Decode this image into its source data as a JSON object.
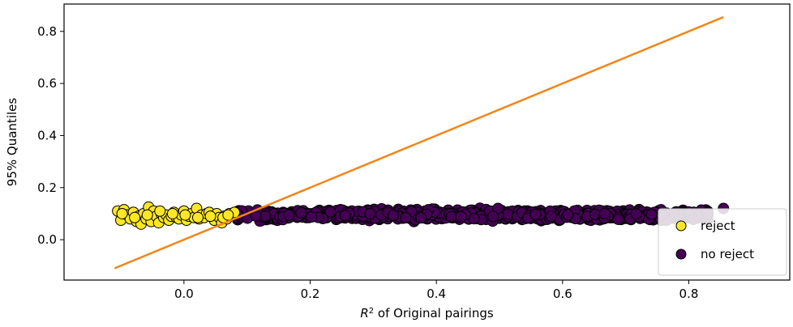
{
  "chart_data": {
    "type": "scatter",
    "title": "",
    "xlabel_base": "R",
    "xlabel_sup": "2",
    "xlabel_rest": " of Original pairings",
    "ylabel": "95% Quantiles",
    "xlim": [
      -0.19,
      0.96
    ],
    "ylim": [
      -0.155,
      0.905
    ],
    "x_ticks": [
      {
        "value": 0.0,
        "label": "0.0"
      },
      {
        "value": 0.2,
        "label": "0.2"
      },
      {
        "value": 0.4,
        "label": "0.4"
      },
      {
        "value": 0.6,
        "label": "0.6"
      },
      {
        "value": 0.8,
        "label": "0.8"
      }
    ],
    "y_ticks": [
      {
        "value": 0.0,
        "label": "0.0"
      },
      {
        "value": 0.2,
        "label": "0.2"
      },
      {
        "value": 0.4,
        "label": "0.4"
      },
      {
        "value": 0.6,
        "label": "0.6"
      },
      {
        "value": 0.8,
        "label": "0.8"
      }
    ],
    "legend_position": "lower-right",
    "line": {
      "x": [
        -0.11,
        0.855
      ],
      "y": [
        -0.11,
        0.855
      ],
      "color": "#f28518"
    },
    "series": [
      {
        "name": "reject",
        "color": "#fde725",
        "x": [
          -0.105,
          -0.1,
          -0.095,
          -0.09,
          -0.085,
          -0.08,
          -0.075,
          -0.072,
          -0.068,
          -0.064,
          -0.06,
          -0.056,
          -0.052,
          -0.048,
          -0.044,
          -0.04,
          -0.036,
          -0.032,
          -0.028,
          -0.024,
          -0.02,
          -0.016,
          -0.012,
          -0.008,
          -0.004,
          0.0,
          0.004,
          0.008,
          0.012,
          0.016,
          0.02,
          0.024,
          0.028,
          0.032,
          0.036,
          0.04,
          0.044,
          0.048,
          0.052,
          0.056,
          0.06,
          0.064,
          0.068,
          0.072,
          0.076,
          0.08,
          -0.098,
          -0.078,
          -0.058,
          -0.038,
          -0.018,
          0.002,
          0.022,
          0.042,
          0.062,
          0.07
        ],
        "y": [
          0.11,
          0.075,
          0.115,
          0.095,
          0.08,
          0.105,
          0.07,
          0.09,
          0.06,
          0.1,
          0.08,
          0.125,
          0.07,
          0.11,
          0.09,
          0.065,
          0.1,
          0.085,
          0.095,
          0.075,
          0.09,
          0.105,
          0.085,
          0.08,
          0.095,
          0.11,
          0.075,
          0.09,
          0.1,
          0.085,
          0.12,
          0.08,
          0.095,
          0.085,
          0.1,
          0.105,
          0.09,
          0.075,
          0.1,
          0.085,
          0.065,
          0.09,
          0.08,
          0.1,
          0.095,
          0.105,
          0.1,
          0.085,
          0.095,
          0.11,
          0.1,
          0.095,
          0.085,
          0.09,
          0.085,
          0.095
        ]
      },
      {
        "name": "no reject",
        "color": "#440154",
        "x_range": [
          0.08,
          0.855
        ],
        "y_center": 0.095,
        "y_spread": 0.028,
        "count": 900,
        "outlier": [
          0.855,
          0.12
        ]
      }
    ]
  }
}
